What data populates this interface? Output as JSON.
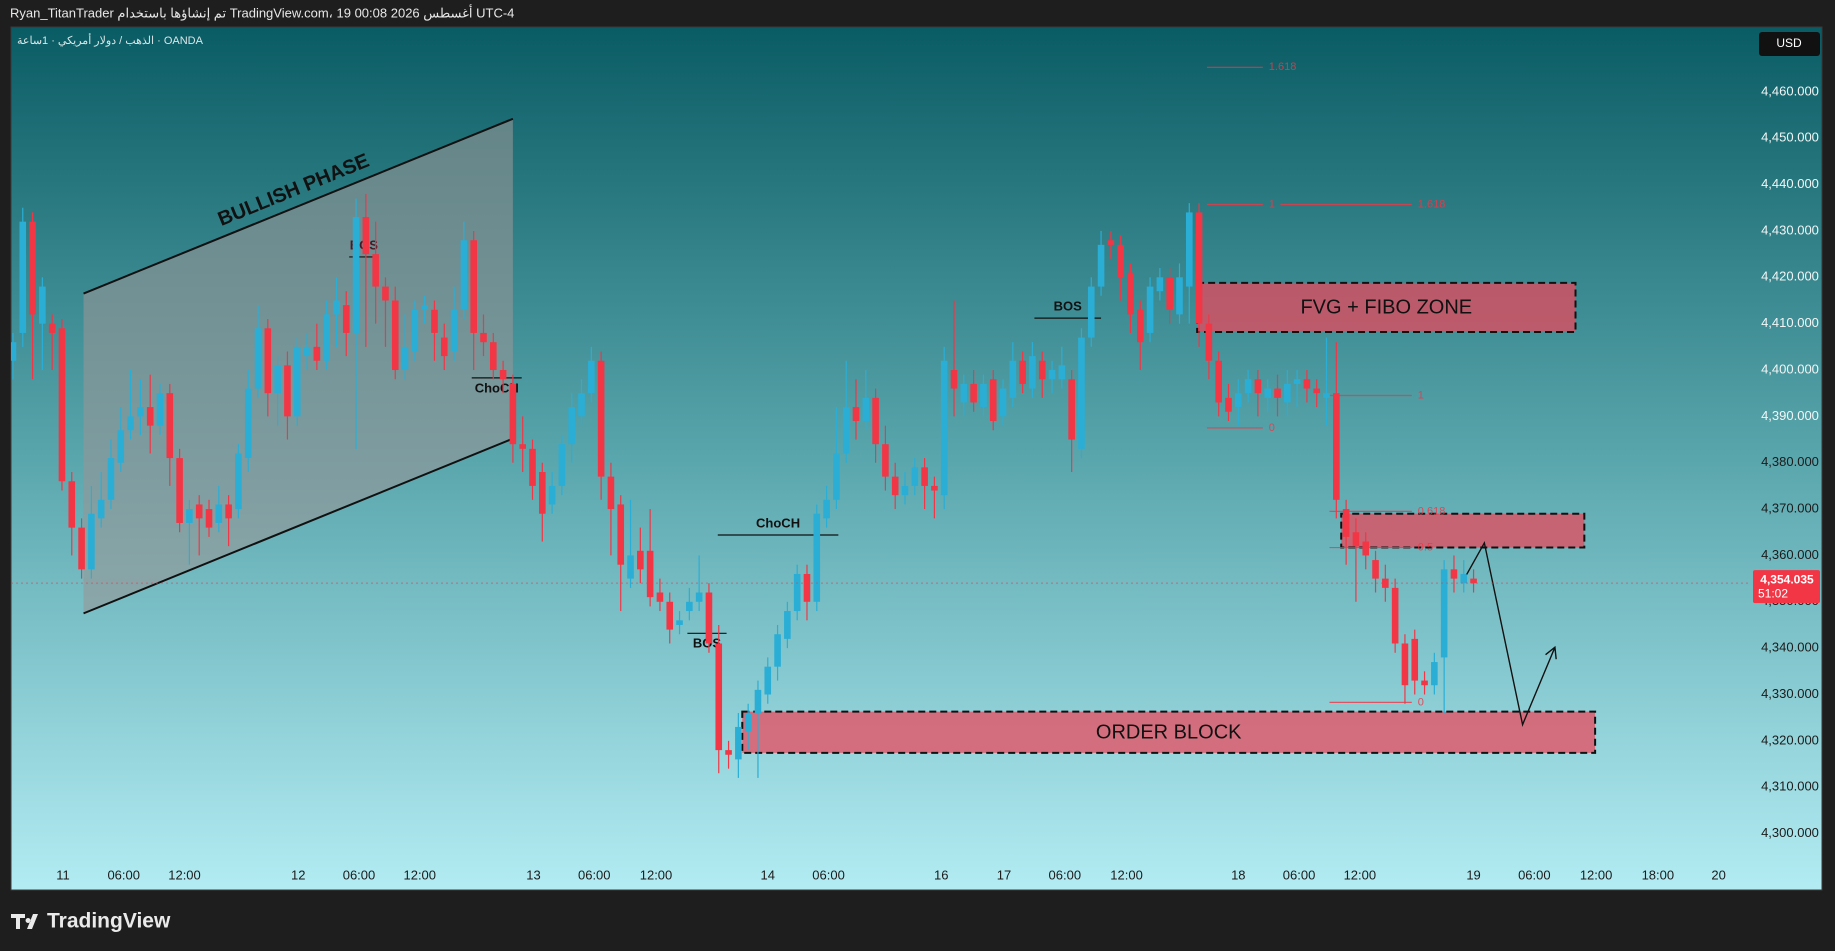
{
  "header": {
    "title": "Ryan_TitanTrader تم إنشاؤها باستخدام TradingView.com، 19 أغسطس 2026 00:08 UTC-4",
    "symbol": "الذهب / دولار أمريكي · 1ساعة · OANDA",
    "currency": "USD",
    "brand": "TradingView"
  },
  "chart_data": {
    "type": "candlestick",
    "up_color": "#2aaed6",
    "down_color": "#f23645",
    "open": [
      4402,
      4408,
      4432,
      4410,
      4410,
      4409,
      4376,
      4366,
      4357,
      4368,
      4372,
      4380,
      4387,
      4390,
      4392,
      4388,
      4395,
      4381,
      4367,
      4371,
      4370,
      4367,
      4371,
      4370,
      4381,
      4396,
      4409,
      4395,
      4401,
      4390,
      4403,
      4405,
      4402,
      4412,
      4414,
      4408,
      4433,
      4425,
      4418,
      4415,
      4400,
      4404,
      4413,
      4413,
      4407,
      4404,
      4413,
      4428,
      4408,
      4406,
      4400,
      4397,
      4384,
      4383,
      4378,
      4371,
      4375,
      4384,
      4390,
      4395,
      4402,
      4377,
      4371,
      4355,
      4361,
      4361,
      4352,
      4350,
      4345,
      4348,
      4350,
      4352,
      4341,
      4318,
      4316,
      4322,
      4326,
      4330,
      4336,
      4342,
      4348,
      4356,
      4350,
      4368,
      4372,
      4382,
      4392,
      4389,
      4394,
      4384,
      4377,
      4373,
      4375,
      4379,
      4375,
      4373,
      4400,
      4393,
      4397,
      4392,
      4398,
      4390,
      4394,
      4402,
      4396,
      4402,
      4398,
      4398,
      4398,
      4383,
      4407,
      4418,
      4428,
      4427,
      4421,
      4413,
      4408,
      4417,
      4420,
      4412,
      4418,
      4434,
      4410,
      4402,
      4394,
      4392,
      4395,
      4398,
      4394,
      4396,
      4393,
      4397,
      4398,
      4396,
      4394,
      4395,
      4370,
      4365,
      4363,
      4359,
      4355,
      4353,
      4341,
      4342,
      4333,
      4332,
      4338,
      4357,
      4354,
      4355
    ],
    "high": [
      4408,
      4435,
      4434,
      4420,
      4412,
      4411,
      4378,
      4368,
      4375,
      4378,
      4385,
      4392,
      4400,
      4398,
      4399,
      4397,
      4397,
      4383,
      4372,
      4373,
      4372,
      4375,
      4373,
      4384,
      4400,
      4414,
      4411,
      4403,
      4404,
      4407,
      4408,
      4410,
      4415,
      4420,
      4417,
      4437,
      4438,
      4432,
      4420,
      4418,
      4412,
      4415,
      4416,
      4415,
      4410,
      4418,
      4432,
      4430,
      4412,
      4408,
      4402,
      4399,
      4390,
      4385,
      4380,
      4378,
      4386,
      4395,
      4398,
      4405,
      4404,
      4380,
      4373,
      4372,
      4366,
      4370,
      4355,
      4352,
      4348,
      4353,
      4360,
      4354,
      4345,
      4320,
      4326,
      4328,
      4333,
      4338,
      4345,
      4350,
      4358,
      4358,
      4371,
      4375,
      4392,
      4402,
      4398,
      4400,
      4396,
      4388,
      4380,
      4378,
      4381,
      4381,
      4377,
      4405,
      4415,
      4399,
      4400,
      4399,
      4400,
      4398,
      4406,
      4404,
      4406,
      4404,
      4402,
      4405,
      4400,
      4409,
      4420,
      4430,
      4430,
      4429,
      4423,
      4415,
      4420,
      4422,
      4422,
      4423,
      4436,
      4436,
      4412,
      4404,
      4397,
      4398,
      4400,
      4400,
      4398,
      4399,
      4400,
      4400,
      4400,
      4398,
      4407,
      4406,
      4372,
      4368,
      4365,
      4361,
      4358,
      4355,
      4343,
      4344,
      4335,
      4339,
      4359,
      4360,
      4359,
      4357
    ],
    "low": [
      4398,
      4405,
      4398,
      4400,
      4400,
      4374,
      4360,
      4355,
      4355,
      4366,
      4370,
      4378,
      4385,
      4386,
      4382,
      4386,
      4375,
      4365,
      4358,
      4360,
      4364,
      4365,
      4362,
      4368,
      4378,
      4394,
      4390,
      4388,
      4385,
      4388,
      4400,
      4400,
      4400,
      4405,
      4403,
      4383,
      4405,
      4410,
      4405,
      4398,
      4398,
      4402,
      4410,
      4402,
      4400,
      4402,
      4411,
      4400,
      4403,
      4398,
      4395,
      4380,
      4378,
      4372,
      4363,
      4369,
      4373,
      4380,
      4388,
      4393,
      4372,
      4360,
      4348,
      4353,
      4354,
      4349,
      4348,
      4341,
      4343,
      4346,
      4348,
      4339,
      4313,
      4314,
      4312,
      4318,
      4312,
      4328,
      4333,
      4340,
      4346,
      4346,
      4348,
      4366,
      4370,
      4380,
      4385,
      4387,
      4380,
      4374,
      4370,
      4371,
      4373,
      4370,
      4368,
      4370,
      4390,
      4390,
      4391,
      4390,
      4387,
      4388,
      4392,
      4395,
      4394,
      4394,
      4395,
      4396,
      4378,
      4381,
      4405,
      4416,
      4424,
      4415,
      4408,
      4400,
      4406,
      4415,
      4410,
      4410,
      4410,
      4405,
      4398,
      4390,
      4389,
      4388,
      4393,
      4390,
      4391,
      4390,
      4390,
      4392,
      4393,
      4392,
      4388,
      4368,
      4358,
      4350,
      4357,
      4352,
      4350,
      4339,
      4328,
      4330,
      4330,
      4330,
      4326,
      4352,
      4352,
      4352
    ],
    "close": [
      4406,
      4432,
      4412,
      4418,
      4408,
      4376,
      4366,
      4357,
      4369,
      4372,
      4381,
      4387,
      4390,
      4392,
      4388,
      4395,
      4381,
      4367,
      4370,
      4368,
      4366,
      4371,
      4368,
      4382,
      4396,
      4409,
      4395,
      4401,
      4390,
      4405,
      4405,
      4402,
      4412,
      4415,
      4408,
      4433,
      4425,
      4418,
      4415,
      4400,
      4405,
      4413,
      4414,
      4408,
      4403,
      4413,
      4428,
      4408,
      4406,
      4400,
      4398,
      4384,
      4383,
      4375,
      4369,
      4375,
      4384,
      4392,
      4395,
      4402,
      4377,
      4370,
      4358,
      4360,
      4357,
      4351,
      4350,
      4344,
      4346,
      4350,
      4352,
      4341,
      4318,
      4317,
      4323,
      4326,
      4331,
      4336,
      4343,
      4348,
      4356,
      4350,
      4369,
      4372,
      4382,
      4392,
      4389,
      4394,
      4384,
      4377,
      4373,
      4375,
      4379,
      4375,
      4374,
      4402,
      4396,
      4397,
      4393,
      4397,
      4389,
      4396,
      4402,
      4397,
      4403,
      4398,
      4400,
      4401,
      4385,
      4407,
      4418,
      4427,
      4427,
      4420,
      4412,
      4406,
      4418,
      4420,
      4413,
      4420,
      4434,
      4410,
      4402,
      4393,
      4391,
      4395,
      4398,
      4395,
      4396,
      4394,
      4397,
      4398,
      4396,
      4395,
      4395,
      4372,
      4364,
      4362,
      4360,
      4355,
      4353,
      4341,
      4332,
      4333,
      4332,
      4337,
      4357,
      4355,
      4356,
      4354
    ],
    "xlim": [
      -0.2,
      177.2
    ],
    "xticks": [
      {
        "value": 5.1,
        "label": "11"
      },
      {
        "value": 11.3,
        "label": "06:00"
      },
      {
        "value": 17.5,
        "label": "12:00"
      },
      {
        "value": 29.1,
        "label": "12"
      },
      {
        "value": 35.3,
        "label": "06:00"
      },
      {
        "value": 41.5,
        "label": "12:00"
      },
      {
        "value": 53.1,
        "label": "13"
      },
      {
        "value": 59.3,
        "label": "06:00"
      },
      {
        "value": 65.6,
        "label": "12:00"
      },
      {
        "value": 77,
        "label": "14"
      },
      {
        "value": 83.2,
        "label": "06:00"
      },
      {
        "value": 94.7,
        "label": "16"
      },
      {
        "value": 101.1,
        "label": "17"
      },
      {
        "value": 107.3,
        "label": "06:00"
      },
      {
        "value": 113.6,
        "label": "12:00"
      },
      {
        "value": 125,
        "label": "18"
      },
      {
        "value": 131.2,
        "label": "06:00"
      },
      {
        "value": 137.4,
        "label": "12:00"
      },
      {
        "value": 149,
        "label": "19"
      },
      {
        "value": 155.2,
        "label": "06:00"
      },
      {
        "value": 161.5,
        "label": "12:00"
      },
      {
        "value": 167.8,
        "label": "18:00"
      },
      {
        "value": 174,
        "label": "20"
      }
    ],
    "ylim": [
      4293,
      4474
    ],
    "yticks": [
      {
        "value": 4300,
        "label": "4,300.000"
      },
      {
        "value": 4310,
        "label": "4,310.000"
      },
      {
        "value": 4320,
        "label": "4,320.000"
      },
      {
        "value": 4330,
        "label": "4,330.000"
      },
      {
        "value": 4340,
        "label": "4,340.000"
      },
      {
        "value": 4350,
        "label": "4,350.000"
      },
      {
        "value": 4360,
        "label": "4,360.000"
      },
      {
        "value": 4370,
        "label": "4,370.000"
      },
      {
        "value": 4380,
        "label": "4,380.000"
      },
      {
        "value": 4390,
        "label": "4,390.000"
      },
      {
        "value": 4400,
        "label": "4,400.000"
      },
      {
        "value": 4410,
        "label": "4,410.000"
      },
      {
        "value": 4420,
        "label": "4,420.000"
      },
      {
        "value": 4430,
        "label": "4,430.000"
      },
      {
        "value": 4440,
        "label": "4,440.000"
      },
      {
        "value": 4450,
        "label": "4,450.000"
      },
      {
        "value": 4460,
        "label": "4,460.000"
      }
    ],
    "last_price": {
      "value": 4354.035,
      "label": "4,354.035"
    },
    "countdown": "51:02",
    "annotations": {
      "zones": [
        {
          "label": "FVG + FIBO ZONE",
          "x": [
            120.8,
            159.4
          ],
          "top": 4418.8,
          "bottom": 4408.2
        },
        {
          "x": [
            135.5,
            160.3
          ],
          "top": 4369,
          "bottom": 4361.7
        },
        {
          "label": "ORDER BLOCK",
          "x": [
            74.4,
            161.4
          ],
          "top": 4326.3,
          "bottom": 4317.4
        }
      ],
      "fib": [
        {
          "level": 1.618,
          "price": 4465.3,
          "x": [
            121.8,
            127.5
          ]
        },
        {
          "level": 1,
          "price": 4435.7,
          "x": [
            121.8,
            127.5
          ]
        },
        {
          "level": 0,
          "price": 4387.5,
          "x": [
            121.8,
            127.5
          ]
        },
        {
          "level": 1.618,
          "price": 4435.7,
          "x": [
            129.3,
            142.7
          ]
        },
        {
          "level": 1,
          "price": 4394.5,
          "x": [
            134.3,
            142.7
          ]
        },
        {
          "level": 0.618,
          "price": 4369.5,
          "x": [
            134.3,
            142.7
          ]
        },
        {
          "level": 0.5,
          "price": 4361.7,
          "x": [
            134.3,
            142.7
          ]
        },
        {
          "level": 0,
          "price": 4328.3,
          "x": [
            134.3,
            142.7
          ]
        }
      ],
      "structure": [
        {
          "label": "BOS",
          "x": [
            34.3,
            37.3
          ],
          "price": 4424.4
        },
        {
          "label": "ChoCH",
          "x": [
            46.8,
            51.9
          ],
          "price": 4398.3
        },
        {
          "label": "ChoCH",
          "x": [
            71.9,
            84.2
          ],
          "price": 4364.4
        },
        {
          "label": "BOS",
          "x": [
            68.8,
            72.8
          ],
          "price": 4343.2
        },
        {
          "label": "BOS",
          "x": [
            104.2,
            111.0
          ],
          "price": 4411.2
        }
      ],
      "channel": {
        "label": "BULLISH PHASE",
        "x": [
          7.2,
          51.0
        ],
        "upper": [
          4416.5,
          4454.2
        ],
        "lower": [
          4347.5,
          4385.2
        ]
      },
      "projection": {
        "x": [
          148.3,
          150.1,
          154.0,
          157.3
        ],
        "y": [
          4355.9,
          4362.7,
          4323.5,
          4340.2
        ]
      }
    }
  }
}
